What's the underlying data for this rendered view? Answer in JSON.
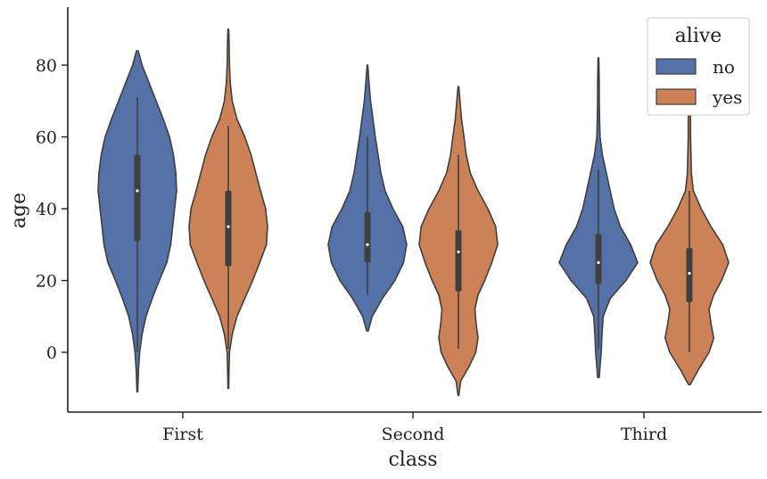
{
  "chart_data": {
    "type": "violin",
    "title": "",
    "xlabel": "class",
    "ylabel": "age",
    "categories": [
      "First",
      "Second",
      "Third"
    ],
    "ylim": [
      -16,
      96
    ],
    "yticks": [
      0,
      20,
      40,
      60,
      80
    ],
    "grid": false,
    "legend": {
      "title": "alive",
      "placement": "top-right"
    },
    "series": [
      {
        "name": "no",
        "color": "#5471a8",
        "violins": [
          {
            "category": "First",
            "profile": [
              [
                -11,
                0.01
              ],
              [
                -5,
                0.03
              ],
              [
                0,
                0.06
              ],
              [
                5,
                0.12
              ],
              [
                10,
                0.22
              ],
              [
                15,
                0.38
              ],
              [
                20,
                0.56
              ],
              [
                25,
                0.75
              ],
              [
                30,
                0.85
              ],
              [
                35,
                0.9
              ],
              [
                40,
                0.95
              ],
              [
                45,
                1.0
              ],
              [
                50,
                0.98
              ],
              [
                55,
                0.92
              ],
              [
                60,
                0.82
              ],
              [
                65,
                0.66
              ],
              [
                70,
                0.48
              ],
              [
                75,
                0.3
              ],
              [
                80,
                0.12
              ],
              [
                84,
                0.02
              ]
            ],
            "whisker": [
              0,
              71
            ],
            "quartiles": [
              31,
              55
            ],
            "median": 45
          },
          {
            "category": "Second",
            "profile": [
              [
                6,
                0.02
              ],
              [
                10,
                0.12
              ],
              [
                15,
                0.38
              ],
              [
                20,
                0.7
              ],
              [
                25,
                0.92
              ],
              [
                30,
                1.0
              ],
              [
                35,
                0.9
              ],
              [
                40,
                0.65
              ],
              [
                45,
                0.45
              ],
              [
                50,
                0.34
              ],
              [
                55,
                0.27
              ],
              [
                60,
                0.2
              ],
              [
                65,
                0.14
              ],
              [
                70,
                0.08
              ],
              [
                75,
                0.04
              ],
              [
                80,
                0.01
              ]
            ],
            "whisker": [
              16,
              60
            ],
            "quartiles": [
              25,
              39
            ],
            "median": 30
          },
          {
            "category": "Third",
            "profile": [
              [
                -7,
                0.02
              ],
              [
                -4,
                0.04
              ],
              [
                0,
                0.07
              ],
              [
                5,
                0.09
              ],
              [
                10,
                0.12
              ],
              [
                15,
                0.3
              ],
              [
                20,
                0.7
              ],
              [
                25,
                1.0
              ],
              [
                30,
                0.82
              ],
              [
                35,
                0.56
              ],
              [
                40,
                0.4
              ],
              [
                45,
                0.3
              ],
              [
                50,
                0.2
              ],
              [
                55,
                0.1
              ],
              [
                60,
                0.04
              ],
              [
                65,
                0.03
              ],
              [
                70,
                0.02
              ],
              [
                75,
                0.02
              ],
              [
                82,
                0.01
              ]
            ],
            "whisker": [
              1,
              51
            ],
            "quartiles": [
              19,
              33
            ],
            "median": 25
          }
        ]
      },
      {
        "name": "yes",
        "color": "#cc8156",
        "violins": [
          {
            "category": "First",
            "profile": [
              [
                -10,
                0.01
              ],
              [
                -4,
                0.02
              ],
              [
                0,
                0.03
              ],
              [
                5,
                0.1
              ],
              [
                10,
                0.22
              ],
              [
                15,
                0.42
              ],
              [
                20,
                0.62
              ],
              [
                25,
                0.8
              ],
              [
                30,
                0.97
              ],
              [
                35,
                1.0
              ],
              [
                40,
                0.95
              ],
              [
                45,
                0.82
              ],
              [
                50,
                0.7
              ],
              [
                55,
                0.58
              ],
              [
                60,
                0.42
              ],
              [
                65,
                0.22
              ],
              [
                70,
                0.1
              ],
              [
                75,
                0.05
              ],
              [
                80,
                0.03
              ],
              [
                86,
                0.02
              ],
              [
                90,
                0.01
              ]
            ],
            "whisker": [
              1,
              63
            ],
            "quartiles": [
              24,
              45
            ],
            "median": 35
          },
          {
            "category": "Second",
            "profile": [
              [
                -12,
                0.01
              ],
              [
                -8,
                0.06
              ],
              [
                -4,
                0.27
              ],
              [
                0,
                0.44
              ],
              [
                4,
                0.5
              ],
              [
                8,
                0.45
              ],
              [
                12,
                0.42
              ],
              [
                16,
                0.5
              ],
              [
                20,
                0.67
              ],
              [
                25,
                0.85
              ],
              [
                30,
                1.0
              ],
              [
                35,
                0.95
              ],
              [
                40,
                0.75
              ],
              [
                45,
                0.5
              ],
              [
                50,
                0.3
              ],
              [
                55,
                0.2
              ],
              [
                60,
                0.14
              ],
              [
                65,
                0.08
              ],
              [
                70,
                0.04
              ],
              [
                74,
                0.01
              ]
            ],
            "whisker": [
              1,
              55
            ],
            "quartiles": [
              17,
              34
            ],
            "median": 28
          },
          {
            "category": "Third",
            "profile": [
              [
                -9,
                0.02
              ],
              [
                -5,
                0.22
              ],
              [
                0,
                0.5
              ],
              [
                4,
                0.62
              ],
              [
                8,
                0.55
              ],
              [
                12,
                0.5
              ],
              [
                16,
                0.62
              ],
              [
                20,
                0.82
              ],
              [
                25,
                1.0
              ],
              [
                30,
                0.85
              ],
              [
                35,
                0.55
              ],
              [
                40,
                0.3
              ],
              [
                45,
                0.1
              ],
              [
                50,
                0.05
              ],
              [
                55,
                0.04
              ],
              [
                60,
                0.03
              ],
              [
                65,
                0.03
              ],
              [
                70,
                0.02
              ],
              [
                73,
                0.01
              ]
            ],
            "whisker": [
              0,
              45
            ],
            "quartiles": [
              14,
              29
            ],
            "median": 22
          }
        ]
      }
    ]
  }
}
